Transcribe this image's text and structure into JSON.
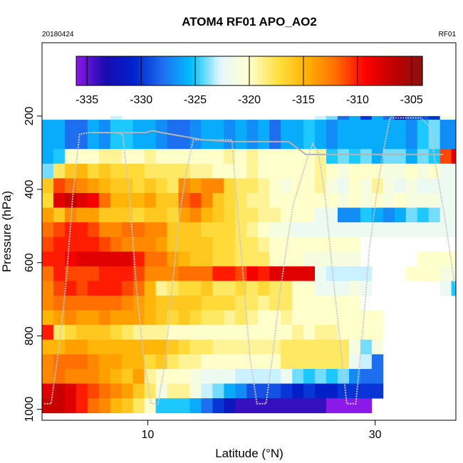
{
  "chart_data": {
    "type": "heatmap",
    "title": "ATOM4 RF01 APO_AO2",
    "subtitle_left": "20180424",
    "subtitle_right": "RF01",
    "xlabel": "Latitude (°N)",
    "ylabel": "Pressure (hPa)",
    "xlim": [
      0.7,
      37.1
    ],
    "ylim": [
      1030,
      0
    ],
    "x_ticks": [
      10,
      30
    ],
    "x_tick_labels": [
      "10",
      "30"
    ],
    "y_ticks": [
      200,
      400,
      600,
      800,
      1000
    ],
    "y_tick_labels": [
      "200",
      "400",
      "600",
      "800",
      "1000"
    ],
    "colorbar": {
      "min": -336,
      "max": -304,
      "ticks": [
        -335,
        -330,
        -325,
        -320,
        -315,
        -310,
        -305
      ],
      "tick_labels": [
        "-335",
        "-330",
        "-325",
        "-320",
        "-315",
        "-310",
        "-305"
      ],
      "colors": [
        "#8B1AE8",
        "#1A0BB0",
        "#0022CC",
        "#1E6EF0",
        "#00C0FF",
        "#E6F8FF",
        "#FFFFCC",
        "#FFE040",
        "#FFB000",
        "#FF7000",
        "#FF0000",
        "#C00000",
        "#8B1010"
      ]
    },
    "x_start": 0.7,
    "x_step": 1,
    "row_bins_hpa": [
      [
        200,
        210,
        250
      ],
      [
        210,
        250,
        290
      ],
      [
        290,
        290,
        330
      ],
      [
        330,
        330,
        370
      ],
      [
        370,
        370,
        410
      ],
      [
        410,
        410,
        450
      ],
      [
        450,
        450,
        490
      ],
      [
        490,
        490,
        530
      ],
      [
        530,
        530,
        570
      ],
      [
        570,
        570,
        610
      ],
      [
        610,
        610,
        650
      ],
      [
        650,
        650,
        690
      ],
      [
        690,
        690,
        730
      ],
      [
        730,
        730,
        770
      ],
      [
        770,
        770,
        810
      ],
      [
        810,
        810,
        850
      ],
      [
        850,
        850,
        890
      ],
      [
        890,
        890,
        930
      ],
      [
        930,
        930,
        970
      ],
      [
        970,
        970,
        1010
      ]
    ],
    "rows": [
      [
        null,
        null,
        null,
        null,
        null,
        null,
        -323,
        null,
        null,
        null,
        null,
        null,
        null,
        null,
        null,
        null,
        null,
        null,
        null,
        null,
        null,
        null,
        null,
        null,
        -323,
        -324,
        -328,
        -326,
        -330,
        -326,
        -328,
        -333,
        -329,
        -329,
        -330,
        -321,
        -321,
        -321
      ],
      [
        -326,
        -326,
        -328,
        -328,
        -326,
        -327,
        -325,
        -325,
        -326,
        -326,
        -327,
        -328,
        -328,
        -327,
        -326,
        -326,
        -327,
        -326,
        -327,
        -326,
        -328,
        -326,
        -326,
        -325,
        -326,
        -327,
        -326,
        -326,
        -326,
        -326,
        -326,
        -326,
        -327,
        -325,
        -324,
        -327,
        -327,
        -327
      ],
      [
        -326,
        -325,
        -320,
        -320,
        -320,
        -319,
        -319,
        -320,
        -320,
        -319,
        -320,
        -320,
        -320,
        -320,
        -320,
        -320,
        -319,
        -320,
        -319,
        -320,
        -320,
        -320,
        -320,
        -320,
        -319,
        -325,
        -324,
        -325,
        -324,
        -326,
        -324,
        -324,
        -326,
        -324,
        -325,
        -311,
        -308,
        -308
      ],
      [
        -324,
        -318,
        -316,
        -315,
        -317,
        -316,
        -317,
        -317,
        -317,
        -318,
        -318,
        -318,
        -318,
        -319,
        -319,
        -320,
        -320,
        -320,
        -319,
        -320,
        -320,
        -320,
        -320,
        -320,
        -319,
        -320,
        -321,
        -320,
        -320,
        -320,
        -321,
        -321,
        -320,
        -321,
        -320,
        -322,
        -322,
        -322
      ],
      [
        -316,
        -311,
        -312,
        -313,
        -314,
        -315,
        -316,
        -316,
        -317,
        -316,
        -317,
        -318,
        -313,
        -314,
        -313,
        -313,
        -317,
        -318,
        -318,
        -319,
        -320,
        -321,
        -320,
        -320,
        -319,
        -321,
        -322,
        -320,
        -321,
        -319,
        -321,
        -322,
        -321,
        -322,
        -322,
        -322,
        -322,
        -322
      ],
      [
        -317,
        -308,
        -307,
        -308,
        -309,
        -312,
        -315,
        -315,
        -315,
        -314,
        -316,
        -316,
        -312,
        -311,
        -313,
        -316,
        -317,
        -318,
        -319,
        -319,
        -320,
        -320,
        -320,
        -320,
        -320,
        -320,
        -321,
        -320,
        -321,
        -320,
        -321,
        -320,
        -321,
        -321,
        -321,
        -322,
        -322,
        -322
      ],
      [
        -314,
        -316,
        -313,
        -314,
        -314,
        -316,
        -316,
        -316,
        -317,
        -316,
        -316,
        -317,
        -314,
        -313,
        -315,
        -316,
        -317,
        -318,
        -318,
        -319,
        -319,
        -320,
        -320,
        -320,
        -322,
        -322,
        -327,
        -327,
        -325,
        -326,
        -327,
        -326,
        -324,
        -325,
        -324,
        -322,
        -322,
        -322
      ],
      [
        -312,
        -311,
        -310,
        -310,
        -311,
        -313,
        -313,
        -312,
        -312,
        -313,
        -313,
        -316,
        -316,
        -316,
        -317,
        -317,
        -317,
        -318,
        -319,
        -320,
        -321,
        -321,
        -322,
        -322,
        -322,
        -322,
        -322,
        -322,
        -322,
        -322,
        -322,
        -322,
        -322,
        -322,
        -322,
        -322,
        -322,
        -322
      ],
      [
        -311,
        -310,
        -310,
        -310,
        -310,
        -311,
        -312,
        -313,
        -313,
        -313,
        -314,
        -316,
        -316,
        -316,
        -316,
        -317,
        -317,
        -318,
        -318,
        -319,
        -320,
        -320,
        -320,
        -320,
        -320,
        -320,
        -320,
        -320,
        null,
        null,
        null,
        null,
        null,
        null,
        null,
        null,
        null,
        null
      ],
      [
        -310,
        -310,
        -309,
        -308,
        -308,
        -308,
        -308,
        -308,
        -310,
        -312,
        -312,
        -314,
        -315,
        -316,
        -316,
        -317,
        -317,
        -318,
        -318,
        -318,
        -320,
        -320,
        -320,
        -321,
        -321,
        -321,
        -321,
        -321,
        null,
        null,
        null,
        null,
        null,
        -320,
        -320,
        -320,
        -320,
        -320
      ],
      [
        -312,
        -310,
        -311,
        -311,
        -311,
        -310,
        -310,
        -310,
        -311,
        -313,
        -313,
        -313,
        -312,
        -312,
        -312,
        -310,
        -310,
        -311,
        -309,
        -310,
        -308,
        -308,
        -308,
        -308,
        -322,
        -323,
        -323,
        -323,
        -323,
        null,
        null,
        null,
        -320,
        -320,
        -320,
        -321,
        -321,
        -321
      ],
      [
        -313,
        -311,
        -310,
        -311,
        -310,
        -310,
        -310,
        -311,
        -312,
        -315,
        -319,
        -318,
        -317,
        -317,
        -316,
        -318,
        -318,
        -317,
        -318,
        -317,
        -318,
        -318,
        -320,
        -320,
        -322,
        -322,
        -322,
        -321,
        -322,
        null,
        null,
        null,
        null,
        null,
        null,
        -322,
        -325,
        -325
      ],
      [
        -313,
        -312,
        -312,
        -312,
        -312,
        -312,
        -312,
        -313,
        -314,
        -315,
        -316,
        -316,
        -316,
        -316,
        -317,
        -317,
        -317,
        -318,
        -318,
        -319,
        -318,
        -318,
        -320,
        -320,
        -320,
        -320,
        -320,
        -320,
        null,
        null,
        null,
        null,
        null,
        null,
        null,
        null,
        null,
        null
      ],
      [
        -315,
        -314,
        -313,
        -314,
        -314,
        -313,
        -314,
        -314,
        -314,
        -315,
        -316,
        -317,
        -316,
        -317,
        -318,
        -318,
        -319,
        -318,
        -319,
        -320,
        -320,
        -319,
        -320,
        -320,
        -320,
        -320,
        -320,
        -320,
        -320,
        -320,
        null,
        null,
        null,
        null,
        null,
        null,
        null,
        null
      ],
      [
        -310,
        -318,
        -317,
        -316,
        -316,
        -316,
        -317,
        -318,
        -319,
        -319,
        -319,
        -320,
        -320,
        -320,
        -320,
        -320,
        -320,
        -320,
        -320,
        -320,
        -320,
        -320,
        -319,
        -320,
        -319,
        -319,
        -320,
        -320,
        -320,
        -320,
        null,
        null,
        null,
        null,
        null,
        null,
        null,
        null
      ],
      [
        -315,
        -315,
        -314,
        -314,
        -315,
        -315,
        -315,
        -315,
        -315,
        -315,
        -315,
        -316,
        -317,
        -318,
        -318,
        -319,
        -319,
        -319,
        -319,
        -319,
        -319,
        -318,
        -318,
        -318,
        -318,
        -318,
        -318,
        -321,
        -324,
        -321,
        null,
        null,
        null,
        null,
        null,
        null,
        null,
        null
      ],
      [
        -313,
        -312,
        -312,
        -312,
        -313,
        -314,
        -314,
        -315,
        -315,
        -317,
        -316,
        -318,
        -319,
        -319,
        -320,
        -320,
        -320,
        -320,
        -320,
        -320,
        -320,
        -318,
        -318,
        -318,
        -318,
        -318,
        -318,
        -322,
        -323,
        -328,
        null,
        null,
        null,
        null,
        null,
        null,
        null,
        null
      ],
      [
        -313,
        -312,
        -313,
        -313,
        -313,
        -314,
        -315,
        -316,
        -314,
        -319,
        -320,
        -320,
        -320,
        -321,
        -322,
        -322,
        -322,
        -323,
        -323,
        -323,
        -323,
        -322,
        -324,
        -325,
        -324,
        -325,
        -324,
        -327,
        -328,
        -328,
        null,
        null,
        null,
        null,
        null,
        null,
        null,
        null
      ],
      [
        -308,
        -307,
        -308,
        -310,
        -311,
        -312,
        -313,
        -314,
        -316,
        -318,
        -321,
        -319,
        -319,
        -321,
        -323,
        -324,
        -326,
        -327,
        -329,
        -329,
        -329,
        -330,
        -331,
        -330,
        -331,
        -331,
        -330,
        -330,
        -330,
        -330,
        null,
        null,
        null,
        null,
        null,
        null,
        null,
        null
      ],
      [
        -307,
        -307,
        -308,
        -310,
        -312,
        -313,
        -315,
        -316,
        -318,
        -320,
        -325,
        -325,
        -325,
        -326,
        -328,
        -330,
        -332,
        -334,
        -334,
        -334,
        -334,
        -334,
        -334,
        -334,
        -334,
        -336,
        -336,
        -336,
        -336,
        null,
        null,
        null,
        null,
        null,
        null,
        null,
        null,
        null
      ]
    ],
    "flight_track": [
      [
        0.9,
        985
      ],
      [
        1.5,
        985
      ],
      [
        2.2,
        830
      ],
      [
        2.8,
        660
      ],
      [
        3.4,
        420
      ],
      [
        4.0,
        250
      ],
      [
        4.8,
        245
      ],
      [
        5.6,
        245
      ],
      [
        6.4,
        245
      ],
      [
        7.2,
        245
      ],
      [
        7.8,
        250
      ],
      [
        8.4,
        420
      ],
      [
        9.0,
        670
      ],
      [
        9.6,
        850
      ],
      [
        10.3,
        985
      ],
      [
        10.9,
        985
      ],
      [
        11.5,
        880
      ],
      [
        12.1,
        680
      ],
      [
        12.8,
        470
      ],
      [
        13.4,
        350
      ],
      [
        14.0,
        265
      ],
      [
        14.8,
        265
      ],
      [
        15.8,
        265
      ],
      [
        16.8,
        265
      ],
      [
        17.4,
        265
      ],
      [
        17.8,
        420
      ],
      [
        18.4,
        640
      ],
      [
        19.0,
        860
      ],
      [
        19.6,
        985
      ],
      [
        20.4,
        985
      ],
      [
        21.0,
        850
      ],
      [
        21.6,
        690
      ],
      [
        22.2,
        560
      ],
      [
        22.8,
        440
      ],
      [
        23.4,
        380
      ],
      [
        24.0,
        320
      ],
      [
        24.5,
        275
      ],
      [
        25.0,
        300
      ],
      [
        25.6,
        420
      ],
      [
        26.2,
        610
      ],
      [
        26.8,
        780
      ],
      [
        27.5,
        985
      ],
      [
        28.3,
        985
      ],
      [
        28.9,
        790
      ],
      [
        29.5,
        560
      ],
      [
        30.1,
        420
      ],
      [
        30.7,
        300
      ],
      [
        31.3,
        205
      ],
      [
        32.1,
        205
      ],
      [
        33.0,
        205
      ],
      [
        34.0,
        205
      ],
      [
        34.8,
        230
      ],
      [
        35.4,
        350
      ],
      [
        36.1,
        470
      ],
      [
        36.8,
        620
      ],
      [
        37.0,
        660
      ]
    ],
    "flight_track_2": [
      [
        5.0,
        245
      ],
      [
        9.8,
        245
      ],
      [
        10.4,
        240
      ],
      [
        11.2,
        245
      ],
      [
        14.9,
        265
      ],
      [
        17.5,
        270
      ],
      [
        22.4,
        270
      ],
      [
        23.9,
        305
      ],
      [
        28.3,
        305
      ],
      [
        30.6,
        305
      ],
      [
        31.7,
        305
      ],
      [
        36.0,
        305
      ]
    ]
  }
}
